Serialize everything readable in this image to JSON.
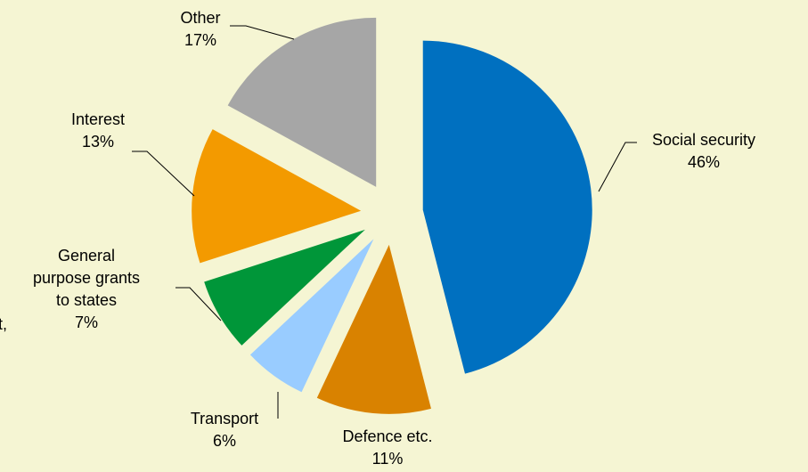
{
  "chart_data": {
    "type": "pie",
    "categories": [
      "Social security",
      "Defence etc.",
      "Transport",
      "General purpose grants to states",
      "Interest",
      "Other"
    ],
    "values": [
      46,
      11,
      6,
      7,
      13,
      17
    ],
    "value_labels": [
      "46%",
      "11%",
      "6%",
      "7%",
      "13%",
      "17%"
    ],
    "colors": [
      "#0070c0",
      "#d98200",
      "#99ccff",
      "#009639",
      "#f39a00",
      "#a6a6a6"
    ],
    "annotation": "nt,"
  }
}
